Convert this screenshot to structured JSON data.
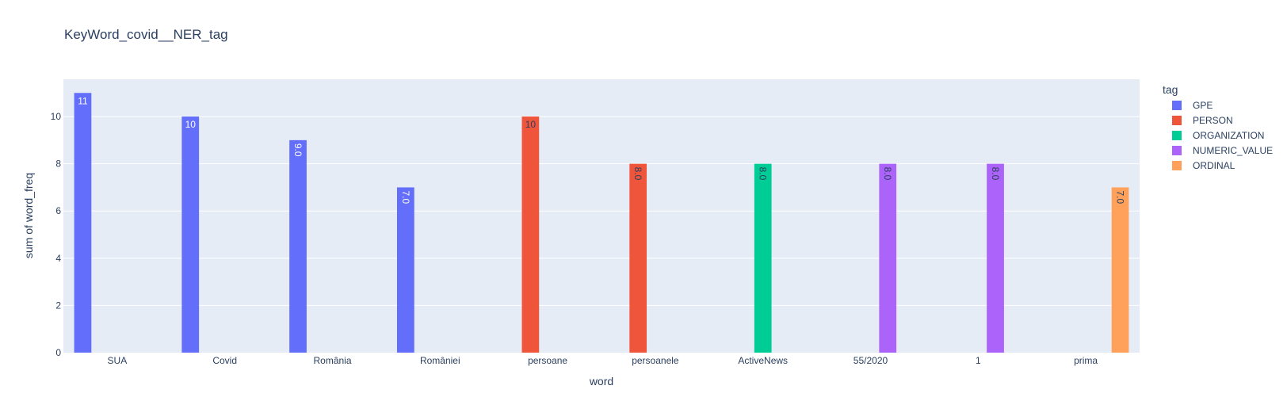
{
  "chart_data": {
    "type": "bar",
    "title": "KeyWord_covid__NER_tag",
    "xlabel": "word",
    "ylabel": "sum of word_freq",
    "ylim": [
      0,
      11.58
    ],
    "yticks": [
      0,
      2,
      4,
      6,
      8,
      10
    ],
    "grid": true,
    "barmode": "group",
    "legend_title": "tag",
    "legend_placement": "right",
    "categories": [
      "SUA",
      "Covid",
      "România",
      "României",
      "persoane",
      "persoanele",
      "ActiveNews",
      "55/2020",
      "1",
      "prima"
    ],
    "series": [
      {
        "name": "GPE",
        "color": "#636efa",
        "values": [
          11,
          10,
          9,
          7,
          null,
          null,
          null,
          null,
          null,
          null
        ],
        "labels": [
          "11",
          "10",
          "9.0",
          "7.0",
          "",
          "",
          "",
          "",
          "",
          ""
        ]
      },
      {
        "name": "PERSON",
        "color": "#ef553b",
        "values": [
          null,
          null,
          null,
          null,
          10,
          8,
          null,
          null,
          null,
          null
        ],
        "labels": [
          "",
          "",
          "",
          "",
          "10",
          "8.0",
          "",
          "",
          "",
          ""
        ]
      },
      {
        "name": "ORGANIZATION",
        "color": "#00cc96",
        "values": [
          null,
          null,
          null,
          null,
          null,
          null,
          8,
          null,
          null,
          null
        ],
        "labels": [
          "",
          "",
          "",
          "",
          "",
          "",
          "8.0",
          "",
          "",
          ""
        ]
      },
      {
        "name": "NUMERIC_VALUE",
        "color": "#ab63fa",
        "values": [
          null,
          null,
          null,
          null,
          null,
          null,
          null,
          8,
          8,
          null
        ],
        "labels": [
          "",
          "",
          "",
          "",
          "",
          "",
          "",
          "8.0",
          "8.0",
          ""
        ]
      },
      {
        "name": "ORDINAL",
        "color": "#ffa15a",
        "values": [
          null,
          null,
          null,
          null,
          null,
          null,
          null,
          null,
          null,
          7
        ],
        "labels": [
          "",
          "",
          "",
          "",
          "",
          "",
          "",
          "",
          "",
          "7.0"
        ]
      }
    ],
    "colors": {
      "plot_bg": "#e5ecf6",
      "grid": "#ffffff",
      "text": "#2a3f5f"
    }
  }
}
